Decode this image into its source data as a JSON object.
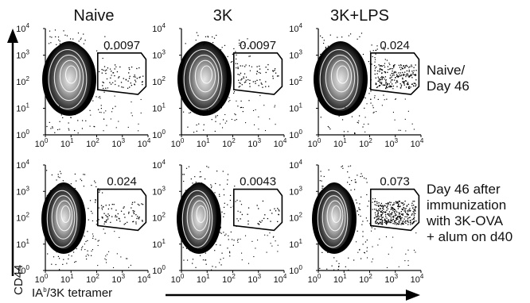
{
  "figure": {
    "column_titles": [
      "Naive",
      "3K",
      "3K+LPS"
    ],
    "row_labels": [
      [
        "Naive/",
        "Day 46"
      ],
      [
        "Day 46 after",
        "immunization",
        "with 3K-OVA",
        "+ alum on d40"
      ]
    ],
    "y_axis_label": "CD44",
    "x_axis_label": {
      "prefix": "IA",
      "superscript": "b",
      "suffix": "/3K tetramer"
    },
    "tick_base": "10",
    "tick_exponents": [
      "0",
      "1",
      "2",
      "3",
      "4"
    ],
    "gate_values": [
      [
        "0.0097",
        "0.0097",
        "0.024"
      ],
      [
        "0.024",
        "0.0043",
        "0.073"
      ]
    ]
  },
  "colors": {
    "density_dark": "#000000",
    "contour": "#ffffff",
    "gate": "#000000"
  }
}
